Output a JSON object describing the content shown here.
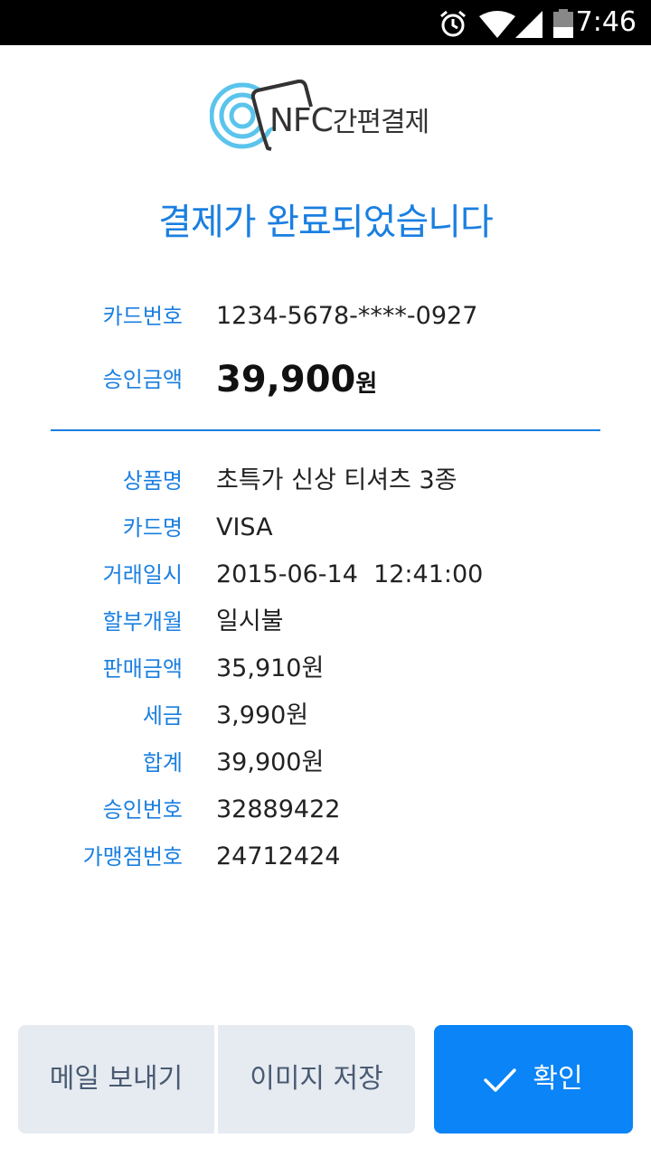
{
  "status_bar": {
    "time": "7:46",
    "icons": [
      "alarm-icon",
      "wifi-icon",
      "signal-icon",
      "battery-icon"
    ]
  },
  "logo": {
    "nfc_text": "NFC",
    "kr_text": "간편결제"
  },
  "headline": "결제가 완료되었습니다",
  "summary": {
    "card_number_label": "카드번호",
    "card_number_value": "1234-5678-****-0927",
    "amount_label": "승인금액",
    "amount_value": "39,900",
    "amount_unit": "원"
  },
  "details": [
    {
      "label": "상품명",
      "value": "초특가 신상 티셔츠 3종"
    },
    {
      "label": "카드명",
      "value": "VISA"
    },
    {
      "label": "거래일시",
      "value": "2015-06-14  12:41:00"
    },
    {
      "label": "할부개월",
      "value": "일시불"
    },
    {
      "label": "판매금액",
      "value": "35,910원"
    },
    {
      "label": "세금",
      "value": "3,990원"
    },
    {
      "label": "합계",
      "value": "39,900원"
    },
    {
      "label": "승인번호",
      "value": "32889422"
    },
    {
      "label": "가맹점번호",
      "value": "24712424"
    }
  ],
  "buttons": {
    "email": "메일 보내기",
    "save_image": "이미지 저장",
    "confirm": "확인"
  },
  "colors": {
    "accent": "#1a7fe0",
    "primary_button": "#0a84f6",
    "secondary_button": "#e6ebf2"
  }
}
